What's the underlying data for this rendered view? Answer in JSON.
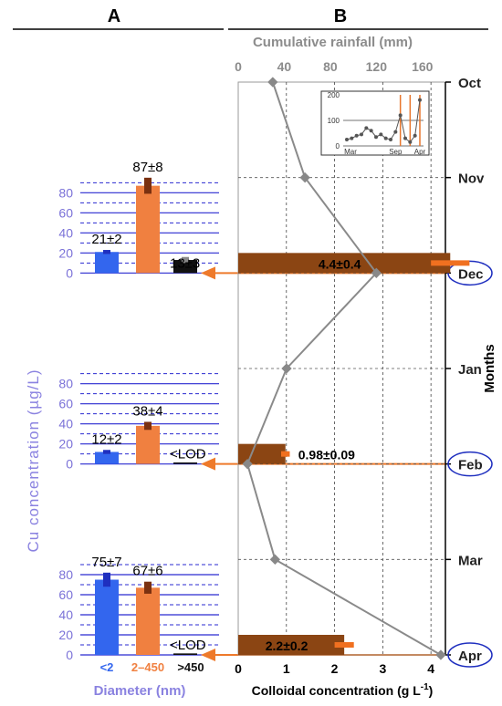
{
  "figure": {
    "panel_a_label": "A",
    "panel_b_label": "B"
  },
  "chart_data": [
    {
      "type": "bar",
      "panel": "A",
      "ylabel": "Cu concentration (µg/L)",
      "xlabel": "Diameter (nm)",
      "categories": [
        "<2",
        "2–450",
        ">450"
      ],
      "category_colors": [
        "#3366ee",
        "#f08040",
        "#111111"
      ],
      "yticks": [
        0,
        20,
        40,
        60,
        80
      ],
      "ylim": [
        0,
        95
      ],
      "groups": [
        {
          "month": "Dec",
          "values": [
            21,
            87,
            13
          ],
          "errors": [
            2,
            8,
            3
          ],
          "labels": [
            "21±2",
            "87±8",
            "13±3"
          ]
        },
        {
          "month": "Feb",
          "values": [
            12,
            38,
            1
          ],
          "errors": [
            2,
            4,
            0
          ],
          "labels": [
            "12±2",
            "38±4",
            "<LOD"
          ]
        },
        {
          "month": "Apr",
          "values": [
            75,
            67,
            1
          ],
          "errors": [
            7,
            6,
            0
          ],
          "labels": [
            "75±7",
            "67±6",
            "<LOD"
          ]
        }
      ]
    },
    {
      "type": "bar+line",
      "panel": "B",
      "ylabel": "Months",
      "months": [
        "Oct",
        "Nov",
        "Dec",
        "Jan",
        "Feb",
        "Mar",
        "Apr"
      ],
      "circled_months": [
        "Dec",
        "Feb",
        "Apr"
      ],
      "bottom_axis": {
        "label": "Colloidal concentration (g L",
        "label_superscript": "-1",
        "label_close": ")",
        "ticks": [
          0,
          1,
          2,
          3,
          4
        ],
        "range": [
          0,
          4.3
        ]
      },
      "top_axis": {
        "label": "Cumulative rainfall (mm)",
        "ticks": [
          0,
          40,
          80,
          120,
          160
        ],
        "range": [
          0,
          180
        ]
      },
      "colloid_bars": [
        {
          "month": "Dec",
          "value": 4.4,
          "error": 0.4,
          "label": "4.4±0.4"
        },
        {
          "month": "Feb",
          "value": 0.98,
          "error": 0.09,
          "label": "0.98±0.09"
        },
        {
          "month": "Apr",
          "value": 2.2,
          "error": 0.2,
          "label": "2.2±0.2"
        }
      ],
      "rainfall_line": {
        "x": [
          30,
          58,
          120,
          42,
          8,
          32,
          176
        ],
        "y": [
          "Oct",
          "Nov",
          "Dec",
          "Jan",
          "Feb",
          "Mar",
          "Apr"
        ]
      },
      "inset": {
        "type": "line",
        "yticks": [
          0,
          100,
          200
        ],
        "xticks": [
          "Mar",
          "Sep",
          "Apr"
        ],
        "values": [
          25,
          30,
          40,
          45,
          70,
          60,
          35,
          45,
          30,
          25,
          55,
          120,
          30,
          15,
          40,
          180
        ],
        "markers_orange_at": [
          11,
          13,
          15
        ]
      }
    }
  ]
}
